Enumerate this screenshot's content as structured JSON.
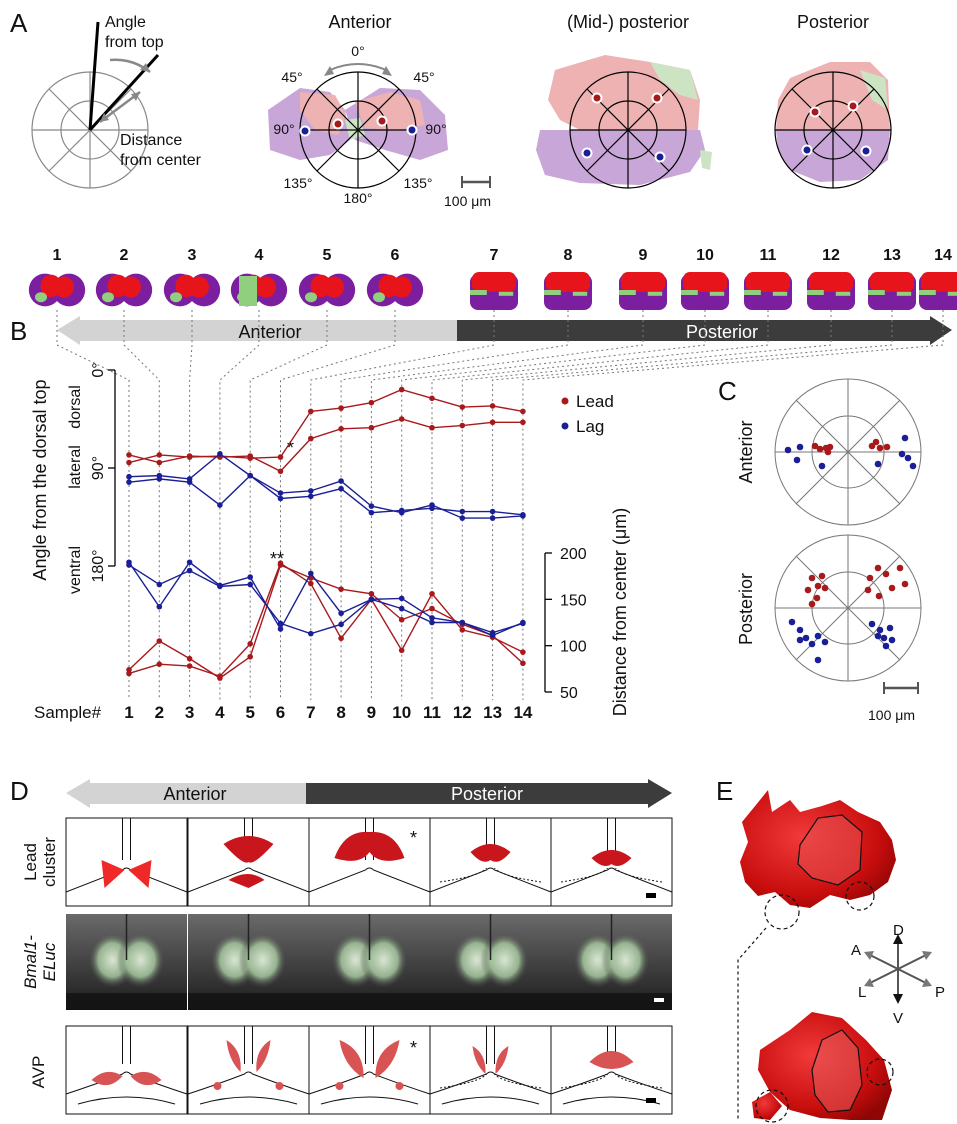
{
  "panels": {
    "A": {
      "letter": "A",
      "angle_label_1": "Angle",
      "angle_label_2": "from top",
      "distance_label_1": "Distance",
      "distance_label_2": "from center",
      "titles": [
        "Anterior",
        "(Mid-) posterior",
        "Posterior"
      ],
      "degrees": {
        "top": "0°",
        "left45": "45°",
        "right45": "45°",
        "left90": "90°",
        "right90": "90°",
        "left135": "135°",
        "right135": "135°",
        "bottom": "180°"
      },
      "scalebar": "100 μm"
    },
    "strip": {
      "samples": [
        "1",
        "2",
        "3",
        "4",
        "5",
        "6",
        "7",
        "8",
        "9",
        "10",
        "11",
        "12",
        "13",
        "14"
      ],
      "colors": {
        "red": "#e8141c",
        "purple": "#7b1fa0",
        "green": "#8fcf7e"
      }
    },
    "B": {
      "letter": "B",
      "arrow_anterior": "Anterior",
      "arrow_posterior": "Posterior",
      "ylabel": "Angle from the dorsal top",
      "ylabel_right": "Distance from center (μm)",
      "angle_ticks": [
        "0°",
        "90°",
        "180°"
      ],
      "region_labels": [
        "dorsal",
        "lateral",
        "ventral"
      ],
      "dist_ticks": [
        "200",
        "150",
        "100",
        "50"
      ],
      "sample_label": "Sample#",
      "star_single": "*",
      "star_double": "**",
      "legend": [
        {
          "name": "Lead",
          "color": "#a8191c"
        },
        {
          "name": "Lag",
          "color": "#1a1f96"
        }
      ]
    },
    "C": {
      "letter": "C",
      "row_labels": [
        "Anterior",
        "Posterior"
      ],
      "scalebar": "100 μm"
    },
    "D": {
      "letter": "D",
      "arrow_anterior": "Anterior",
      "arrow_posterior": "Posterior",
      "row1_label": [
        "Lead",
        "cluster"
      ],
      "row2_label": [
        "Bmal1-",
        "ELuc"
      ],
      "row3_label": "AVP",
      "star": "*"
    },
    "E": {
      "letter": "E",
      "axes": {
        "D": "D",
        "V": "V",
        "A": "A",
        "P": "P",
        "L": "L"
      }
    }
  },
  "chart_data": {
    "type": "line",
    "x": [
      1,
      2,
      3,
      4,
      5,
      6,
      7,
      8,
      9,
      10,
      11,
      12,
      13,
      14
    ],
    "angle_series": [
      {
        "name": "Lead",
        "values": [
          78,
          85,
          79,
          80,
          79,
          93,
          63,
          54,
          53,
          45,
          53,
          51,
          48,
          48
        ]
      },
      {
        "name": "Lead",
        "values": [
          85,
          78,
          80,
          79,
          81,
          80,
          38,
          35,
          30,
          18,
          26,
          34,
          33,
          38
        ]
      },
      {
        "name": "Lag",
        "values": [
          98,
          97,
          100,
          77,
          97,
          118,
          116,
          109,
          131,
          129,
          127,
          130,
          130,
          133
        ]
      },
      {
        "name": "Lag",
        "values": [
          103,
          100,
          103,
          124,
          97,
          113,
          111,
          102,
          125,
          131,
          124,
          136,
          136,
          134
        ]
      }
    ],
    "distance_series": [
      {
        "name": "Lead",
        "values": [
          70,
          80,
          78,
          67,
          102,
          189,
          167,
          108,
          150,
          95,
          156,
          117,
          109,
          93
        ]
      },
      {
        "name": "Lead",
        "values": [
          74,
          105,
          86,
          65,
          88,
          187,
          173,
          161,
          156,
          128,
          140,
          123,
          111,
          81
        ]
      },
      {
        "name": "Lag",
        "values": [
          190,
          142,
          190,
          165,
          174,
          118,
          178,
          135,
          150,
          140,
          125,
          125,
          111,
          125
        ]
      },
      {
        "name": "Lag",
        "values": [
          187,
          166,
          181,
          164,
          166,
          124,
          113,
          123,
          150,
          151,
          130,
          125,
          114,
          124
        ]
      }
    ],
    "ylabel": "Angle from the dorsal top",
    "y2label": "Distance from center (μm)",
    "xlabel": "Sample#",
    "ylim": [
      0,
      180
    ],
    "y2lim": [
      50,
      200
    ],
    "legend": "top-right"
  }
}
